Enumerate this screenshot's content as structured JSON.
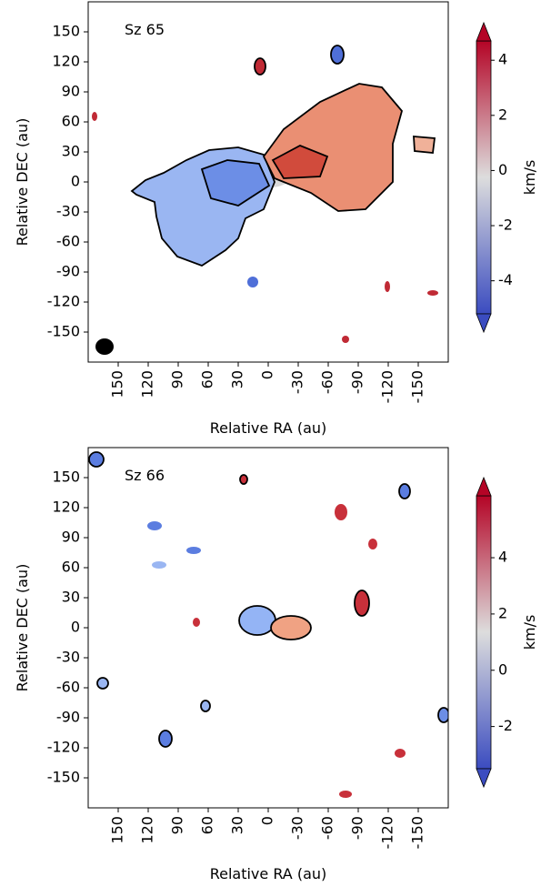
{
  "chart_data": [
    {
      "type": "velocity-map",
      "annotation": "Sz 65",
      "xlabel": "Relative RA (au)",
      "ylabel": "Relative DEC (au)",
      "xlim": [
        180,
        -180
      ],
      "xticks": [
        150,
        120,
        90,
        60,
        30,
        0,
        -30,
        -60,
        -90,
        -120,
        -150
      ],
      "ylim": [
        -180,
        180
      ],
      "yticks": [
        150,
        120,
        90,
        60,
        30,
        0,
        -30,
        -60,
        -90,
        -120,
        -150
      ],
      "colorbar": {
        "label": "km/s",
        "clim": [
          -5.2,
          4.7
        ],
        "ticks": [
          4,
          2,
          0,
          -2,
          -4
        ],
        "colors": [
          "#3b4cc0",
          "#dddddd",
          "#b40426"
        ]
      }
    },
    {
      "type": "velocity-map",
      "annotation": "Sz 66",
      "xlabel": "Relative RA (au)",
      "ylabel": "Relative DEC (au)",
      "xlim": [
        180,
        -180
      ],
      "xticks": [
        150,
        120,
        90,
        60,
        30,
        0,
        -30,
        -60,
        -90,
        -120,
        -150
      ],
      "ylim": [
        -180,
        180
      ],
      "yticks": [
        150,
        120,
        90,
        60,
        30,
        0,
        -30,
        -60,
        -90,
        -120,
        -150
      ],
      "colorbar": {
        "label": "km/s",
        "clim": [
          -3.5,
          6.2
        ],
        "ticks": [
          4,
          2,
          0,
          -2
        ],
        "colors": [
          "#3b4cc0",
          "#dddddd",
          "#b40426"
        ]
      }
    }
  ]
}
